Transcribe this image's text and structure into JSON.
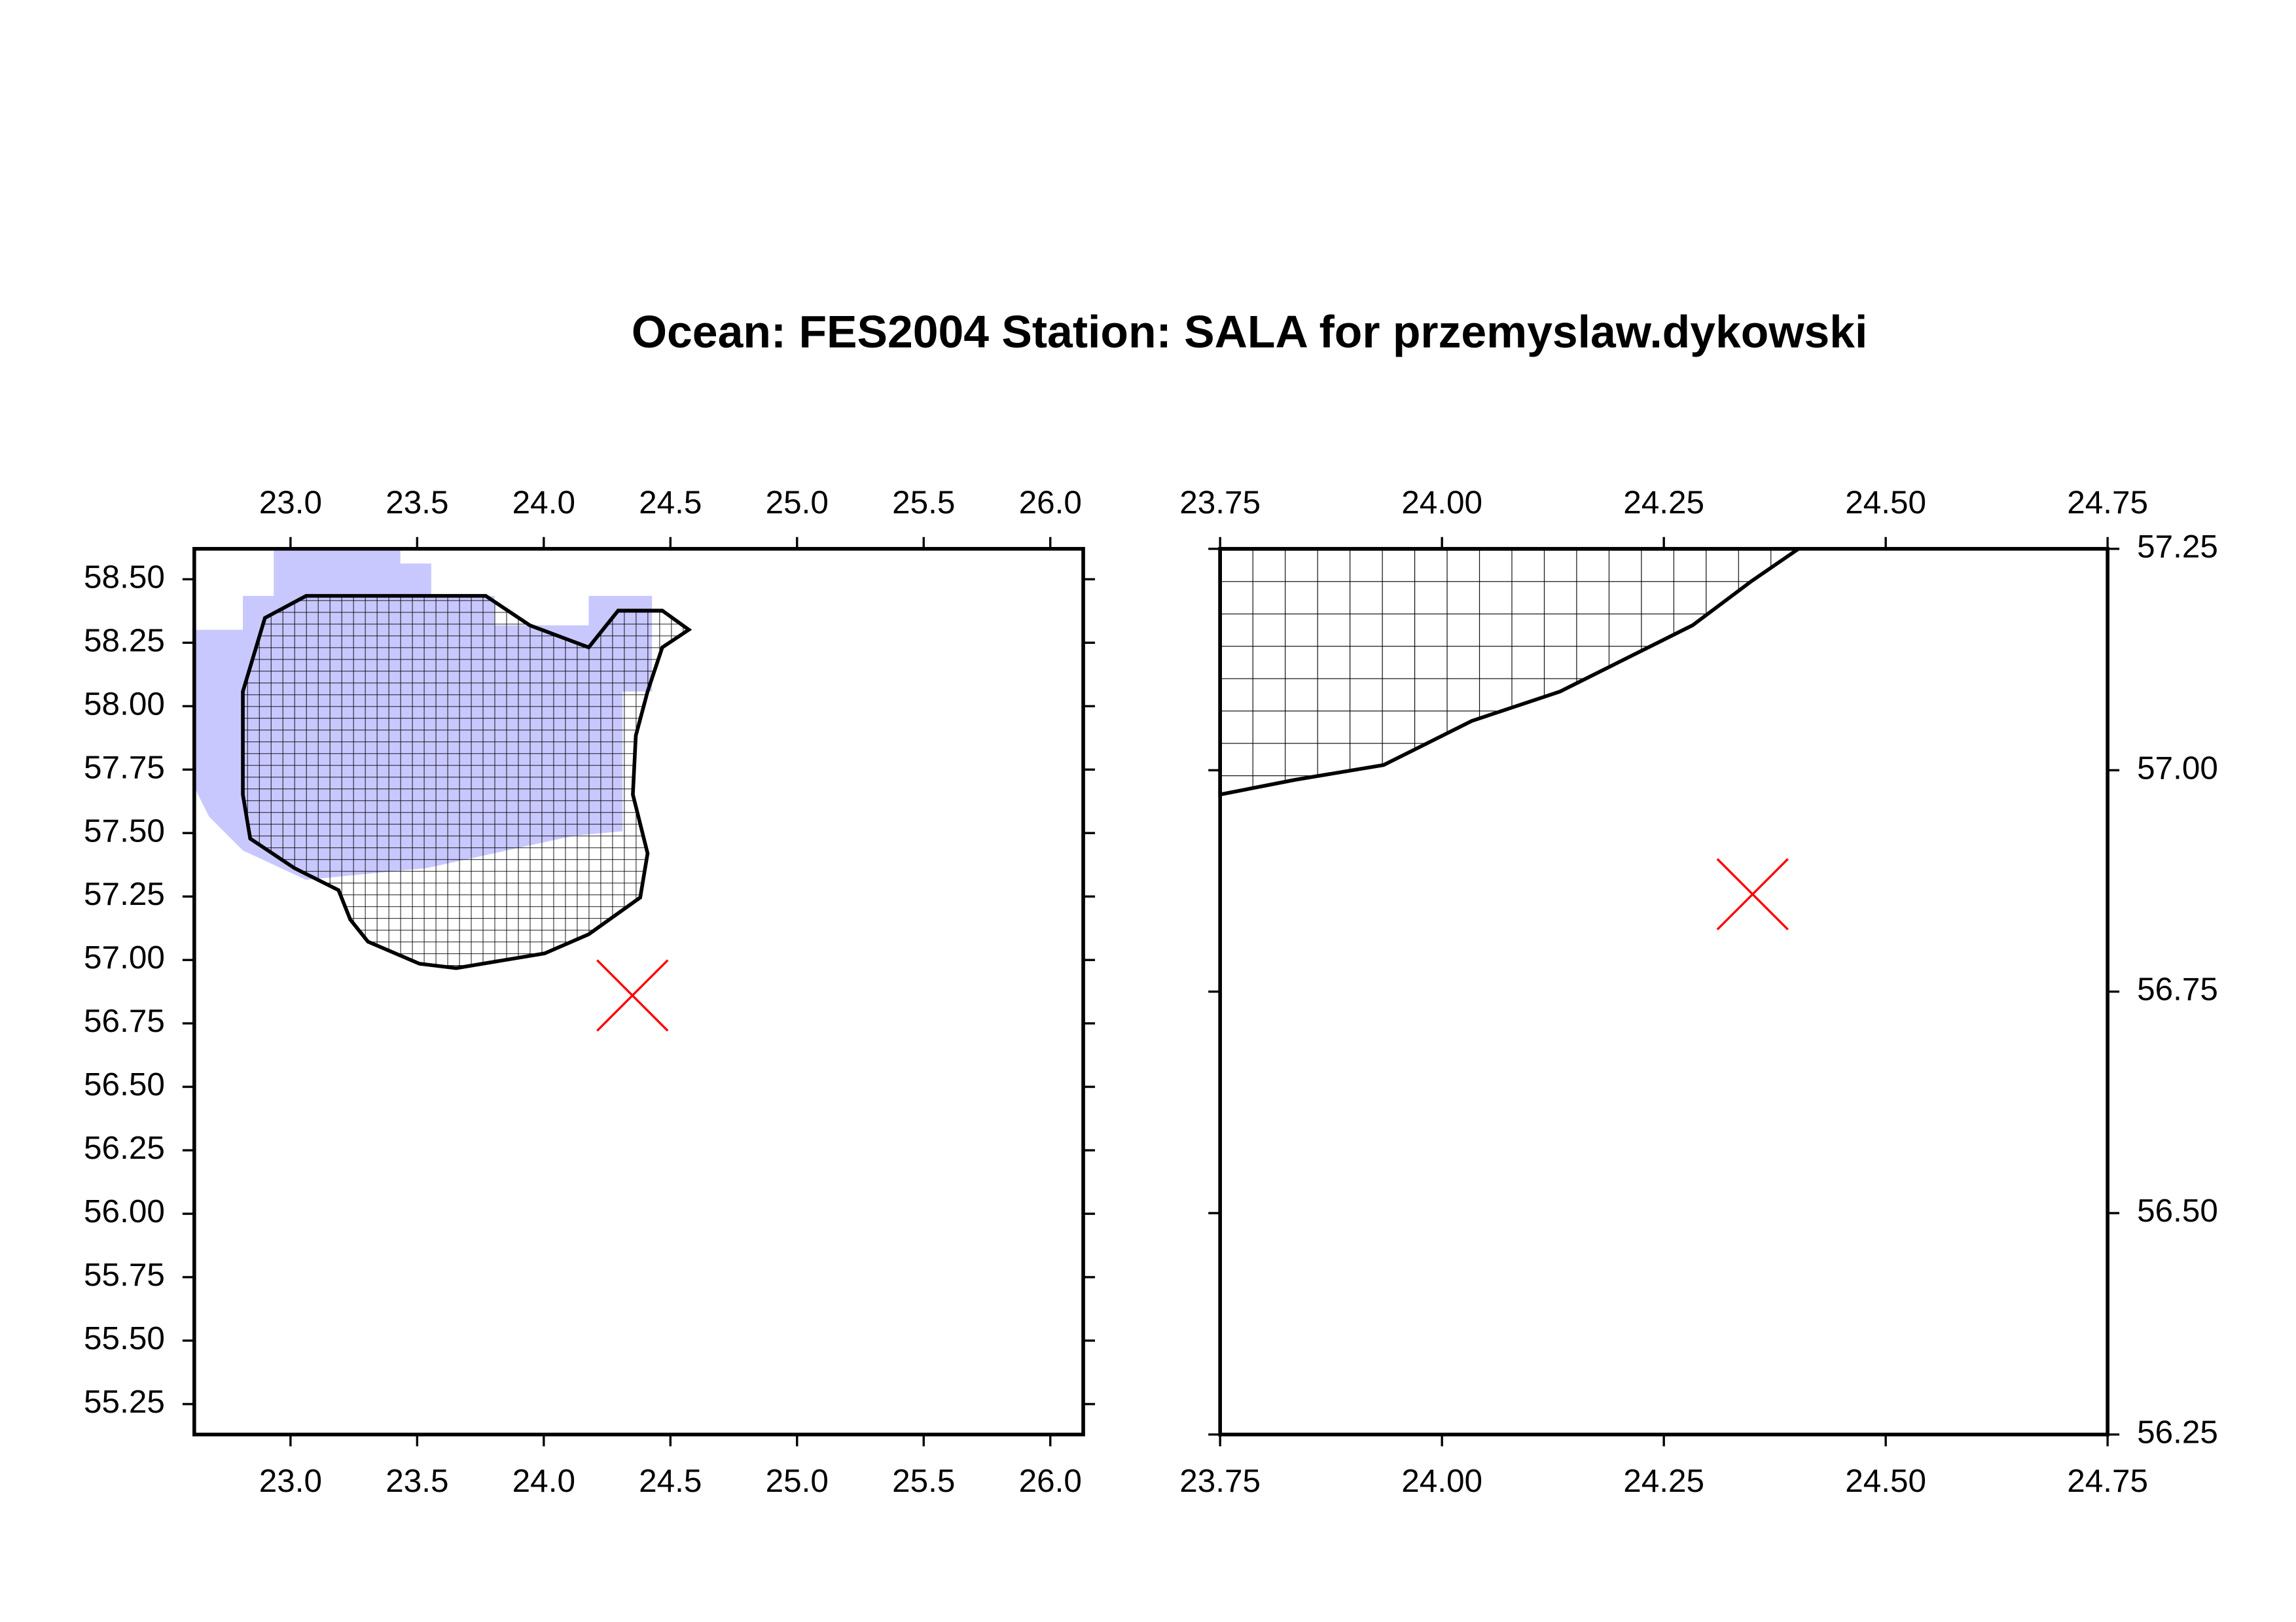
{
  "title": "Ocean: FES2004  Station: SALA  for przemyslaw.dykowski",
  "chart_data": [
    {
      "type": "map",
      "xlim": [
        22.62,
        26.13
      ],
      "ylim": [
        55.13,
        58.62
      ],
      "xticks": [
        {
          "value": 23,
          "label": "23.0"
        },
        23.5,
        {
          "value": 24,
          "label": "24.0"
        },
        24.5,
        {
          "value": 25,
          "label": "25.0"
        },
        25.5,
        {
          "value": 26,
          "label": "26.0"
        }
      ],
      "yticks": [
        {
          "value": 58.5,
          "label": "58.50"
        },
        58.25,
        {
          "value": 58,
          "label": "58.00"
        },
        57.75,
        {
          "value": 57.5,
          "label": "57.50"
        },
        57.25,
        {
          "value": 57,
          "label": "57.00"
        },
        56.75,
        {
          "value": 56.5,
          "label": "56.50"
        },
        56.25,
        {
          "value": 56,
          "label": "56.00"
        },
        55.75,
        {
          "value": 55.5,
          "label": "55.50"
        },
        55.25
      ],
      "ytick_side": "left",
      "station": {
        "x": 24.35,
        "y": 56.86,
        "color": "#ff0000"
      }
    },
    {
      "type": "map",
      "xlim": [
        23.75,
        24.75
      ],
      "ylim": [
        56.25,
        57.25
      ],
      "xticks": [
        23.75,
        {
          "value": 24,
          "label": "24.00"
        },
        24.25,
        {
          "value": 24.5,
          "label": "24.50"
        },
        24.75
      ],
      "yticks": [
        57.25,
        {
          "value": 57,
          "label": "57.00"
        },
        56.75,
        {
          "value": 56.5,
          "label": "56.50"
        },
        56.25
      ],
      "ytick_side": "right",
      "station": {
        "x": 24.35,
        "y": 56.86,
        "color": "#ff0000"
      }
    }
  ]
}
